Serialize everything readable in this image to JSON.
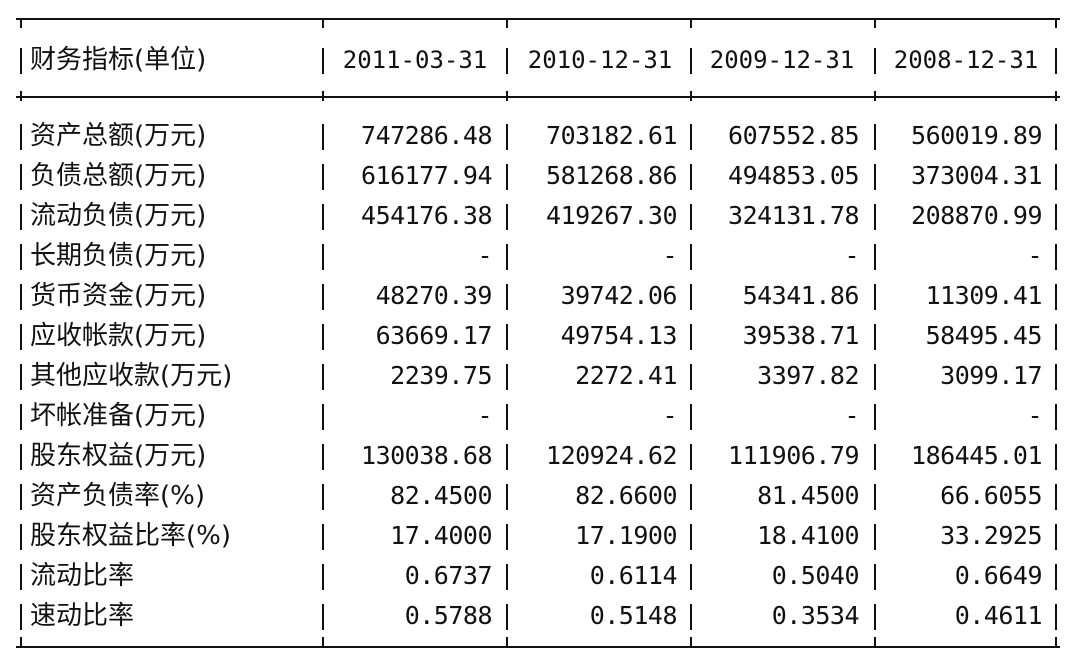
{
  "table": {
    "header": {
      "label": "财务指标(单位)",
      "columns": [
        "2011-03-31",
        "2010-12-31",
        "2009-12-31",
        "2008-12-31"
      ]
    },
    "rows": [
      {
        "label": "资产总额(万元)",
        "values": [
          "747286.48",
          "703182.61",
          "607552.85",
          "560019.89"
        ]
      },
      {
        "label": "负债总额(万元)",
        "values": [
          "616177.94",
          "581268.86",
          "494853.05",
          "373004.31"
        ]
      },
      {
        "label": "流动负债(万元)",
        "values": [
          "454176.38",
          "419267.30",
          "324131.78",
          "208870.99"
        ]
      },
      {
        "label": "长期负债(万元)",
        "values": [
          "-",
          "-",
          "-",
          "-"
        ]
      },
      {
        "label": "货币资金(万元)",
        "values": [
          "48270.39",
          "39742.06",
          "54341.86",
          "11309.41"
        ]
      },
      {
        "label": "应收帐款(万元)",
        "values": [
          "63669.17",
          "49754.13",
          "39538.71",
          "58495.45"
        ]
      },
      {
        "label": "其他应收款(万元)",
        "values": [
          "2239.75",
          "2272.41",
          "3397.82",
          "3099.17"
        ]
      },
      {
        "label": "坏帐准备(万元)",
        "values": [
          "-",
          "-",
          "-",
          "-"
        ]
      },
      {
        "label": "股东权益(万元)",
        "values": [
          "130038.68",
          "120924.62",
          "111906.79",
          "186445.01"
        ]
      },
      {
        "label": "资产负债率(%)",
        "values": [
          "82.4500",
          "82.6600",
          "81.4500",
          "66.6055"
        ]
      },
      {
        "label": "股东权益比率(%)",
        "values": [
          "17.4000",
          "17.1900",
          "18.4100",
          "33.2925"
        ]
      },
      {
        "label": "流动比率",
        "values": [
          "0.6737",
          "0.6114",
          "0.5040",
          "0.6649"
        ]
      },
      {
        "label": "速动比率",
        "values": [
          "0.5788",
          "0.5148",
          "0.3534",
          "0.4611"
        ]
      }
    ]
  }
}
